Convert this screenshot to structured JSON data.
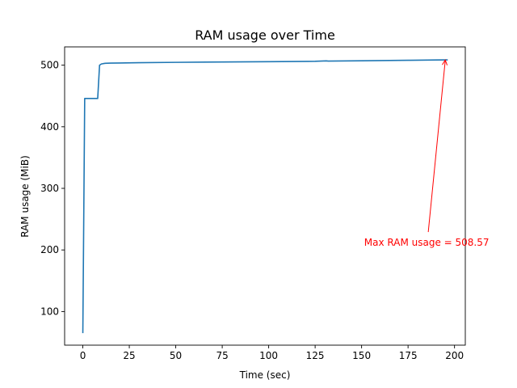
{
  "chart_data": {
    "type": "line",
    "title": "RAM usage over Time",
    "xlabel": "Time (sec)",
    "ylabel": "RAM usage (MiB)",
    "xlim": [
      -9.8,
      205.8
    ],
    "ylim": [
      45.4,
      529.7
    ],
    "xticks": [
      0,
      25,
      50,
      75,
      100,
      125,
      150,
      175,
      200
    ],
    "yticks": [
      100,
      200,
      300,
      400,
      500
    ],
    "grid": false,
    "series": [
      {
        "color": "#1f77b4",
        "x": [
          0,
          1,
          1.5,
          2,
          5,
          8,
          9,
          10,
          12,
          15,
          20,
          30,
          50,
          75,
          100,
          125,
          131,
          132,
          150,
          175,
          190,
          196
        ],
        "y": [
          66,
          446,
          446,
          446,
          446,
          446,
          500,
          502,
          503,
          503.3,
          503.5,
          504,
          504.6,
          505.2,
          505.7,
          506.3,
          507,
          506.6,
          507.2,
          507.9,
          508.4,
          508.57
        ]
      }
    ],
    "annotations": [
      {
        "text": "Max RAM usage = 508.57",
        "color": "#ff0000",
        "point": [
          195,
          508.57
        ],
        "text_anchor_point": [
          185,
          212
        ]
      }
    ]
  }
}
